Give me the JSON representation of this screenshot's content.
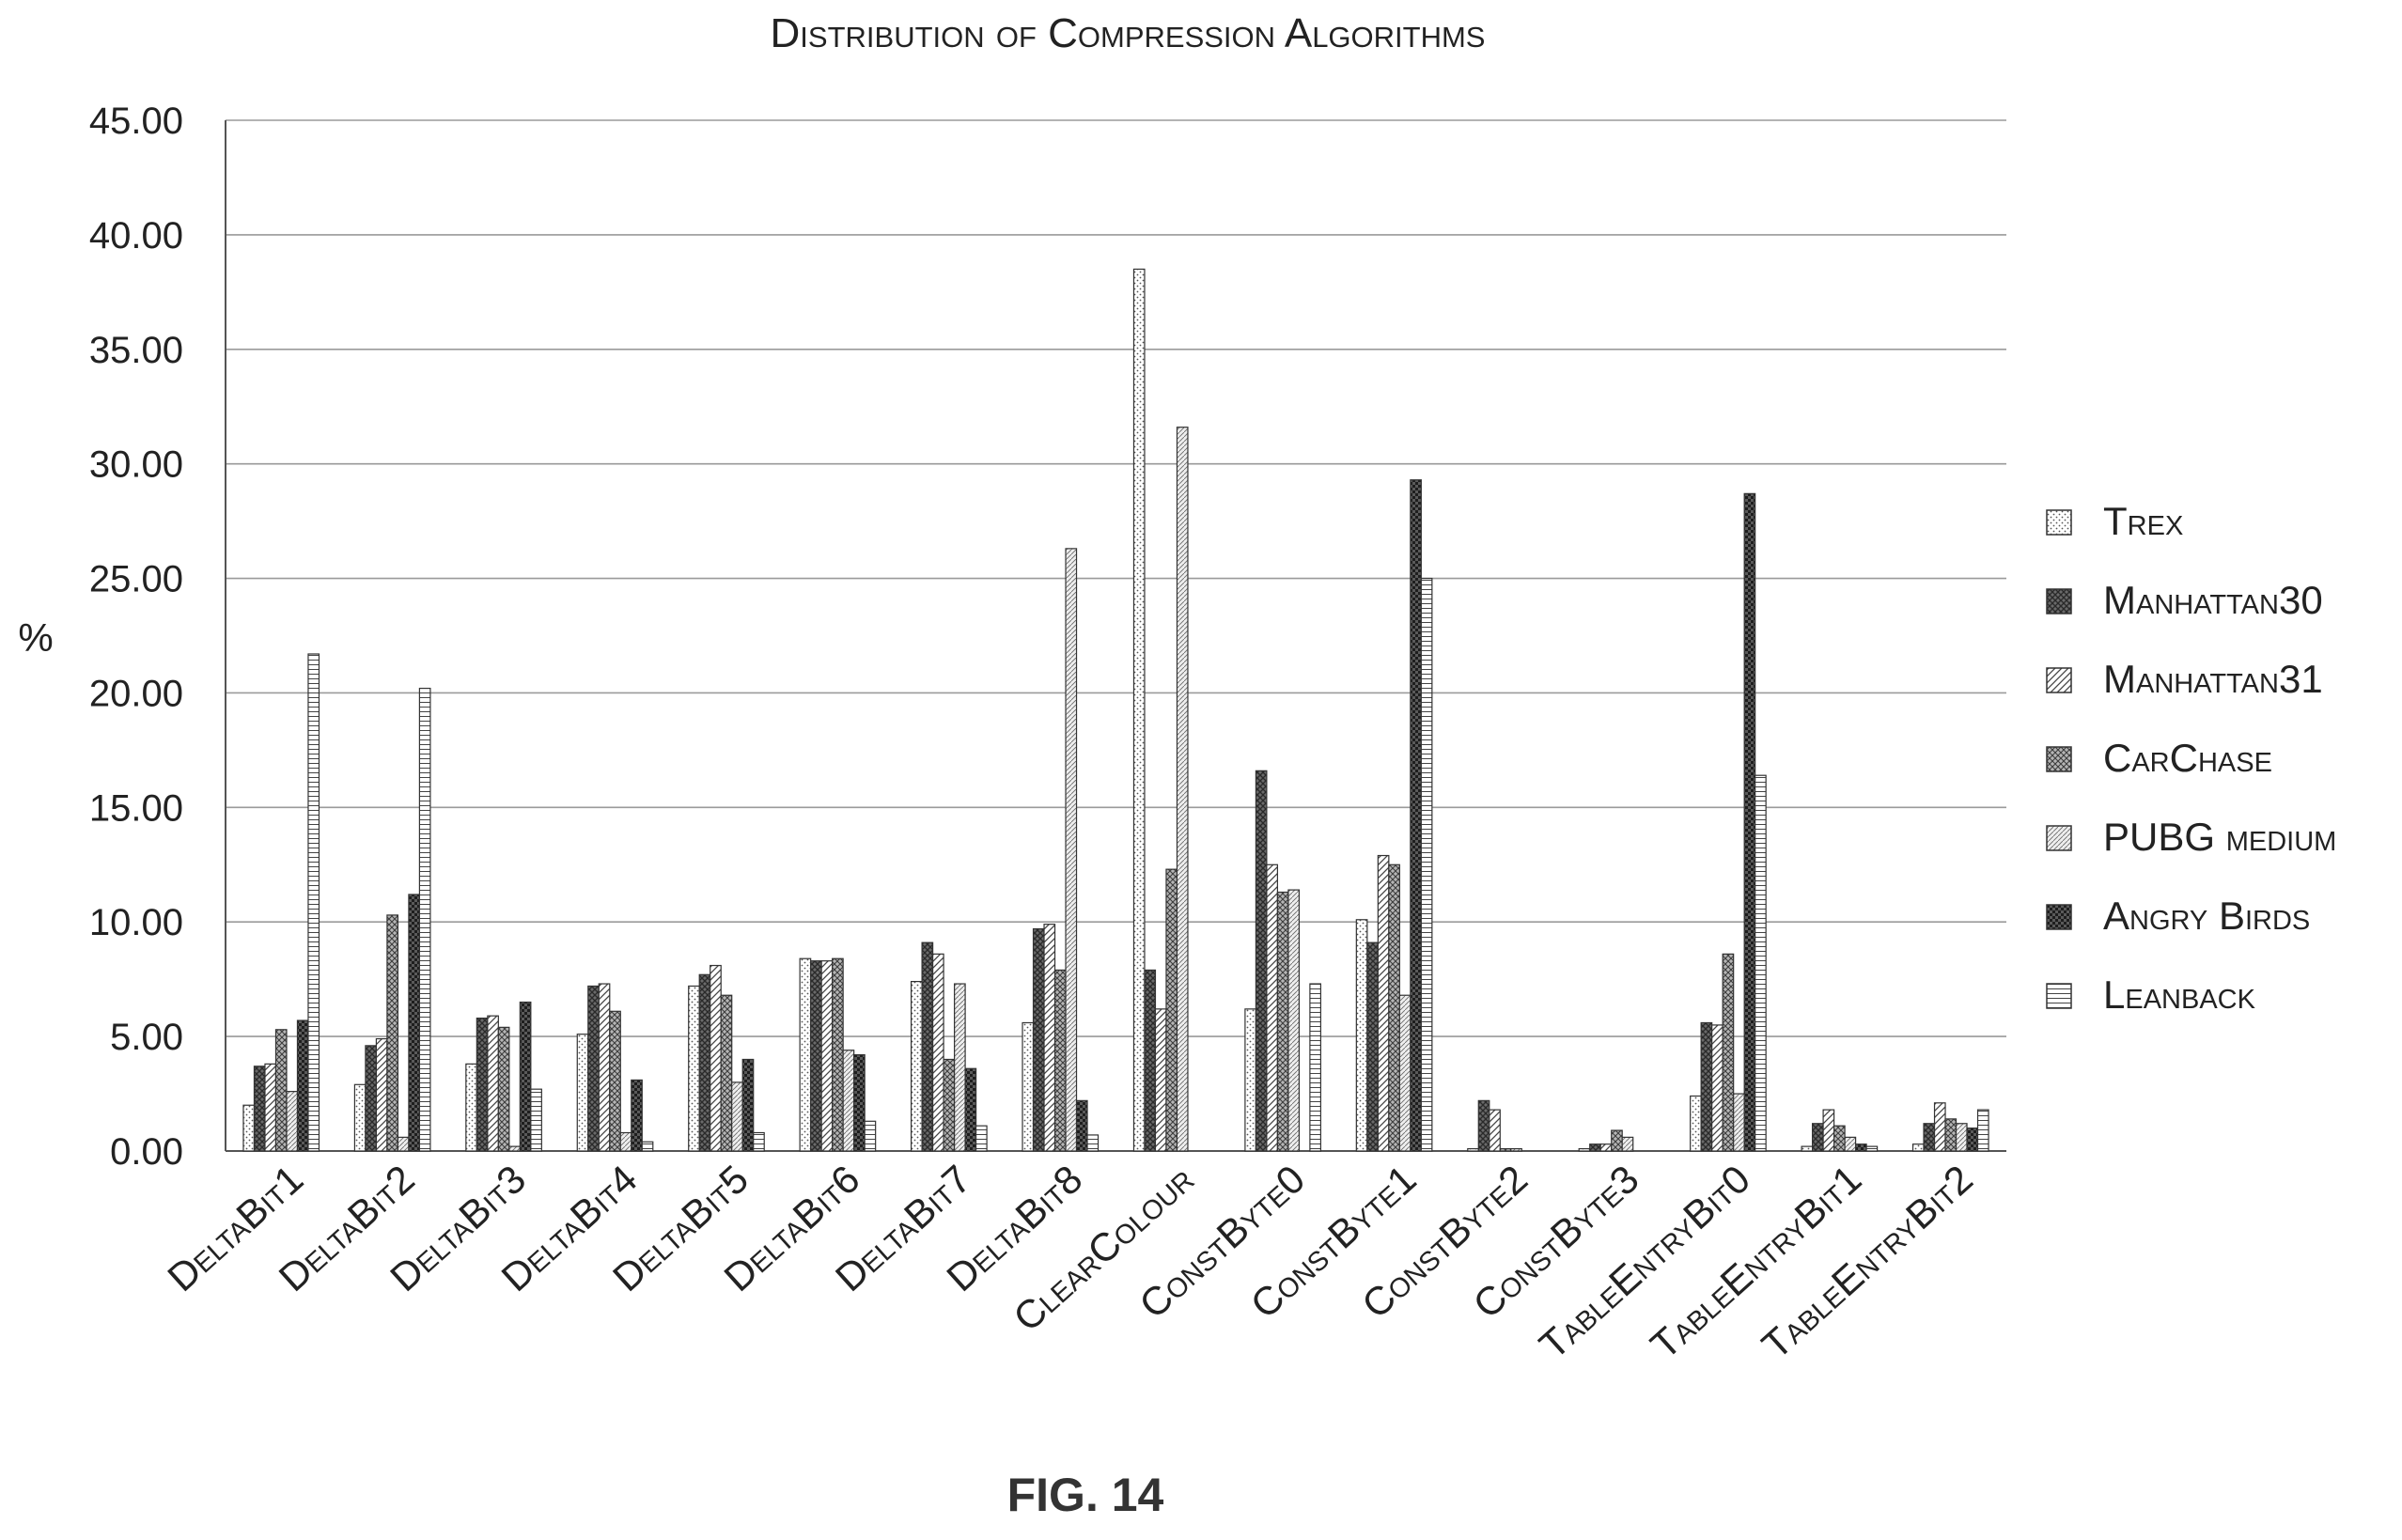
{
  "chart_data": {
    "type": "bar",
    "title": "Distribution of Compression Algorithms",
    "ylabel": "%",
    "xlabel": "",
    "ylim": [
      0,
      45
    ],
    "yticks": [
      "0.00",
      "5.00",
      "10.00",
      "15.00",
      "20.00",
      "25.00",
      "30.00",
      "35.00",
      "40.00",
      "45.00"
    ],
    "grid": true,
    "legend_position": "right",
    "categories": [
      "DeltaBit1",
      "DeltaBit2",
      "DeltaBit3",
      "DeltaBit4",
      "DeltaBit5",
      "DeltaBit6",
      "DeltaBit7",
      "DeltaBit8",
      "ClearColour",
      "ConstByte0",
      "ConstByte1",
      "ConstByte2",
      "ConstByte3",
      "TableEntryBit0",
      "TableEntryBit1",
      "TableEntryBit2"
    ],
    "series": [
      {
        "name": "Trex",
        "values": [
          2.0,
          2.9,
          3.8,
          5.1,
          7.2,
          8.4,
          7.4,
          5.6,
          38.5,
          6.2,
          10.1,
          0.1,
          0.1,
          2.4,
          0.2,
          0.3
        ]
      },
      {
        "name": "Manhattan30",
        "values": [
          3.7,
          4.6,
          5.8,
          7.2,
          7.7,
          8.3,
          9.1,
          9.7,
          7.9,
          16.6,
          9.1,
          2.2,
          0.3,
          5.6,
          1.2,
          1.2
        ]
      },
      {
        "name": "Manhattan31",
        "values": [
          3.8,
          4.9,
          5.9,
          7.3,
          8.1,
          8.3,
          8.6,
          9.9,
          6.2,
          12.5,
          12.9,
          1.8,
          0.3,
          5.5,
          1.8,
          2.1
        ]
      },
      {
        "name": "CarChase",
        "values": [
          5.3,
          10.3,
          5.4,
          6.1,
          6.8,
          8.4,
          4.0,
          7.9,
          12.3,
          11.3,
          12.5,
          0.1,
          0.9,
          8.6,
          1.1,
          1.4
        ]
      },
      {
        "name": "PUBG medium",
        "values": [
          2.6,
          0.6,
          0.2,
          0.8,
          3.0,
          4.4,
          7.3,
          26.3,
          31.6,
          11.4,
          6.8,
          0.1,
          0.6,
          2.5,
          0.6,
          1.2
        ]
      },
      {
        "name": "Angry Birds",
        "values": [
          5.7,
          11.2,
          6.5,
          3.1,
          4.0,
          4.2,
          3.6,
          2.2,
          0.0,
          0.0,
          29.3,
          0.0,
          0.0,
          28.7,
          0.3,
          1.0
        ]
      },
      {
        "name": "Leanback",
        "values": [
          21.7,
          20.2,
          2.7,
          0.4,
          0.8,
          1.3,
          1.1,
          0.7,
          0.0,
          7.3,
          25.0,
          0.0,
          0.0,
          16.4,
          0.2,
          1.8
        ]
      }
    ],
    "figure_label": "FIG. 14"
  },
  "styles": {
    "bar_stroke": "#333333",
    "grid_color": "#9a9a9a",
    "axis_color": "#555555",
    "text_color": "#222222",
    "series_patterns": [
      "dots-light",
      "crosshatch-dark",
      "diagonal-hatch",
      "crosshatch-medium",
      "diagonal-fine",
      "checker-dark",
      "horizontal-lines"
    ]
  }
}
